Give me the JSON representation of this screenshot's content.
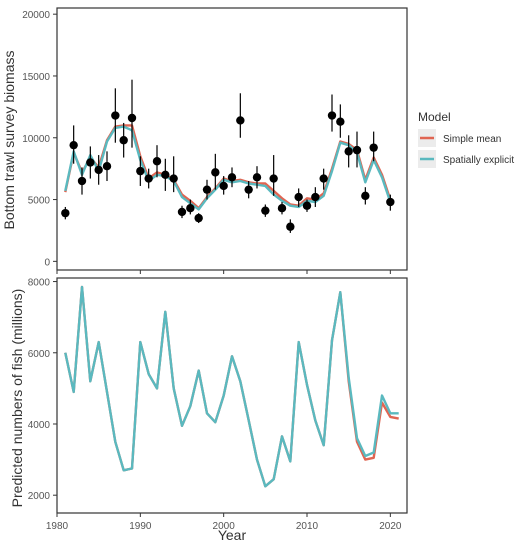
{
  "chart_data": [
    {
      "type": "line",
      "panel": "top",
      "ylabel": "Bottom trawl survey biomass",
      "xlabel": "",
      "xlim": [
        1980,
        2022
      ],
      "ylim": [
        -700,
        20500
      ],
      "yticks": [
        0,
        5000,
        10000,
        15000,
        20000
      ],
      "xticks": [
        1980,
        1990,
        2000,
        2010,
        2020
      ],
      "grid": false,
      "x": [
        1981,
        1982,
        1983,
        1984,
        1985,
        1986,
        1987,
        1988,
        1989,
        1990,
        1991,
        1992,
        1993,
        1994,
        1995,
        1996,
        1997,
        1998,
        1999,
        2000,
        2001,
        2002,
        2003,
        2004,
        2005,
        2006,
        2007,
        2008,
        2009,
        2010,
        2011,
        2012,
        2013,
        2014,
        2015,
        2016,
        2017,
        2018,
        2019,
        2020,
        2021
      ],
      "series": [
        {
          "name": "Simple mean",
          "color": "#e06552",
          "values": [
            5600,
            8800,
            7200,
            8400,
            7600,
            9800,
            10900,
            11000,
            11000,
            8500,
            6700,
            7200,
            7000,
            6600,
            5400,
            4900,
            4300,
            5200,
            5900,
            6700,
            6500,
            6600,
            6400,
            6300,
            6300,
            5700,
            5100,
            4600,
            4500,
            5100,
            5000,
            5500,
            7500,
            9700,
            9500,
            9000,
            6600,
            8400,
            7000,
            5000,
            null
          ],
          "label_text": "Simple mean"
        },
        {
          "name": "Spatially explicit",
          "color": "#5ab9bf",
          "values": [
            5700,
            8900,
            7000,
            8600,
            7300,
            9700,
            10800,
            10900,
            10600,
            8200,
            6500,
            7000,
            6900,
            6500,
            5200,
            4700,
            4200,
            5100,
            5800,
            6600,
            6400,
            6500,
            6300,
            6200,
            6100,
            5400,
            4900,
            4500,
            4400,
            4900,
            4800,
            5300,
            7300,
            9600,
            9400,
            8800,
            6400,
            8200,
            6800,
            4800,
            null
          ],
          "label_text": "Spatially explicit"
        }
      ],
      "points": [
        {
          "x": 1981,
          "y": 3900,
          "lo": 3400,
          "hi": 4400
        },
        {
          "x": 1982,
          "y": 9400,
          "lo": 7900,
          "hi": 11000
        },
        {
          "x": 1983,
          "y": 6500,
          "lo": 5400,
          "hi": 7600
        },
        {
          "x": 1984,
          "y": 8000,
          "lo": 6700,
          "hi": 9300
        },
        {
          "x": 1985,
          "y": 7400,
          "lo": 6200,
          "hi": 8600
        },
        {
          "x": 1986,
          "y": 7700,
          "lo": 6500,
          "hi": 8900
        },
        {
          "x": 1987,
          "y": 11800,
          "lo": 9600,
          "hi": 14000
        },
        {
          "x": 1988,
          "y": 9800,
          "lo": 8400,
          "hi": 11200
        },
        {
          "x": 1989,
          "y": 11600,
          "lo": 9200,
          "hi": 14700
        },
        {
          "x": 1990,
          "y": 7300,
          "lo": 6100,
          "hi": 8500
        },
        {
          "x": 1991,
          "y": 6700,
          "lo": 5900,
          "hi": 7500
        },
        {
          "x": 1992,
          "y": 8100,
          "lo": 6800,
          "hi": 9400
        },
        {
          "x": 1993,
          "y": 7000,
          "lo": 5700,
          "hi": 8300
        },
        {
          "x": 1994,
          "y": 6700,
          "lo": 5600,
          "hi": 8500
        },
        {
          "x": 1995,
          "y": 4000,
          "lo": 3500,
          "hi": 4500
        },
        {
          "x": 1996,
          "y": 4300,
          "lo": 3800,
          "hi": 5000
        },
        {
          "x": 1997,
          "y": 3500,
          "lo": 3100,
          "hi": 3900
        },
        {
          "x": 1998,
          "y": 5800,
          "lo": 5000,
          "hi": 6600
        },
        {
          "x": 1999,
          "y": 7200,
          "lo": 5800,
          "hi": 8700
        },
        {
          "x": 2000,
          "y": 6100,
          "lo": 5400,
          "hi": 6900
        },
        {
          "x": 2001,
          "y": 6800,
          "lo": 6000,
          "hi": 7600
        },
        {
          "x": 2002,
          "y": 11400,
          "lo": 10000,
          "hi": 13600
        },
        {
          "x": 2003,
          "y": 5800,
          "lo": 5100,
          "hi": 6500
        },
        {
          "x": 2004,
          "y": 6800,
          "lo": 5900,
          "hi": 7700
        },
        {
          "x": 2005,
          "y": 4100,
          "lo": 3600,
          "hi": 4600
        },
        {
          "x": 2006,
          "y": 6700,
          "lo": 5300,
          "hi": 8600
        },
        {
          "x": 2007,
          "y": 4300,
          "lo": 3800,
          "hi": 4800
        },
        {
          "x": 2008,
          "y": 2800,
          "lo": 2300,
          "hi": 3400
        },
        {
          "x": 2009,
          "y": 5200,
          "lo": 4400,
          "hi": 5900
        },
        {
          "x": 2010,
          "y": 4500,
          "lo": 4000,
          "hi": 5000
        },
        {
          "x": 2011,
          "y": 5200,
          "lo": 4400,
          "hi": 6000
        },
        {
          "x": 2012,
          "y": 6700,
          "lo": 5800,
          "hi": 7500
        },
        {
          "x": 2013,
          "y": 11800,
          "lo": 10500,
          "hi": 13500
        },
        {
          "x": 2014,
          "y": 11300,
          "lo": 10000,
          "hi": 12700
        },
        {
          "x": 2015,
          "y": 8900,
          "lo": 7600,
          "hi": 10200
        },
        {
          "x": 2016,
          "y": 9000,
          "lo": 7600,
          "hi": 10500
        },
        {
          "x": 2017,
          "y": 5300,
          "lo": 4600,
          "hi": 6000
        },
        {
          "x": 2018,
          "y": 9200,
          "lo": 8100,
          "hi": 10500
        },
        {
          "x": 2019,
          "y": null,
          "lo": null,
          "hi": null
        },
        {
          "x": 2020,
          "y": 4800,
          "lo": 4100,
          "hi": 5400
        }
      ]
    },
    {
      "type": "line",
      "panel": "bottom",
      "ylabel": "Predicted numbers of fish (millions)",
      "xlabel": "Year",
      "xlim": [
        1980,
        2022
      ],
      "ylim": [
        1500,
        8100
      ],
      "yticks": [
        2000,
        4000,
        6000,
        8000
      ],
      "xticks": [
        1980,
        1990,
        2000,
        2010,
        2020
      ],
      "grid": false,
      "x": [
        1981,
        1982,
        1983,
        1984,
        1985,
        1986,
        1987,
        1988,
        1989,
        1990,
        1991,
        1992,
        1993,
        1994,
        1995,
        1996,
        1997,
        1998,
        1999,
        2000,
        2001,
        2002,
        2003,
        2004,
        2005,
        2006,
        2007,
        2008,
        2009,
        2010,
        2011,
        2012,
        2013,
        2014,
        2015,
        2016,
        2017,
        2018,
        2019,
        2020,
        2021
      ],
      "series": [
        {
          "name": "Simple mean",
          "color": "#e06552",
          "values": [
            6000,
            4900,
            7850,
            5200,
            6300,
            4900,
            3500,
            2700,
            2750,
            6300,
            5400,
            5000,
            7150,
            5000,
            3950,
            4500,
            5500,
            4300,
            4050,
            4800,
            5900,
            5200,
            4100,
            3000,
            2250,
            2450,
            3650,
            2950,
            6300,
            5100,
            4100,
            3400,
            6350,
            7700,
            5200,
            3500,
            3000,
            3050,
            4600,
            4200,
            4150
          ]
        },
        {
          "name": "Spatially explicit",
          "color": "#5ab9bf",
          "values": [
            6000,
            4900,
            7850,
            5200,
            6300,
            4900,
            3500,
            2700,
            2750,
            6300,
            5400,
            5000,
            7150,
            5000,
            3950,
            4500,
            5500,
            4300,
            4050,
            4800,
            5900,
            5200,
            4100,
            3000,
            2250,
            2450,
            3650,
            2950,
            6300,
            5100,
            4100,
            3400,
            6350,
            7700,
            5300,
            3600,
            3100,
            3200,
            4800,
            4300,
            4300
          ]
        }
      ]
    }
  ],
  "legend": {
    "title": "Model",
    "placement": "right",
    "items": [
      {
        "label": "Simple mean",
        "color": "#e06552"
      },
      {
        "label": "Spatially explicit",
        "color": "#5ab9bf"
      }
    ]
  },
  "top_ytick_labels": [
    "0",
    "5000",
    "10000",
    "15000",
    "20000"
  ],
  "bottom_ytick_labels": [
    "2000",
    "4000",
    "6000",
    "8000"
  ],
  "xtick_labels": [
    "1980",
    "1990",
    "2000",
    "2010",
    "2020"
  ],
  "xlabel": "Year",
  "top_ylabel": "Bottom trawl survey biomass",
  "bottom_ylabel": "Predicted numbers of fish (millions)"
}
